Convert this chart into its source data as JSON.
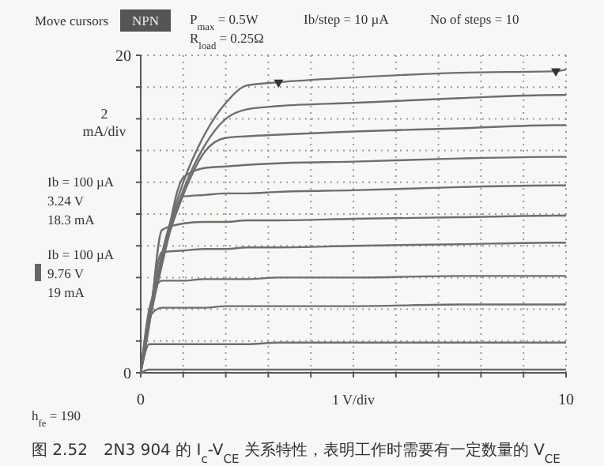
{
  "chart_data": {
    "type": "line",
    "ylabel": "2 mA/div",
    "xlabel": "1 V/div",
    "x": [
      0,
      0.2,
      0.5,
      1,
      1.5,
      2,
      2.5,
      3.24,
      5,
      7.5,
      9.76,
      10
    ],
    "xlim": [
      0,
      10
    ],
    "ylim": [
      0,
      20
    ],
    "xticks": [
      0,
      {
        "value": 1,
        "label": null
      },
      {
        "value": 2,
        "label": null
      },
      {
        "value": 3,
        "label": null
      },
      {
        "value": 4,
        "label": null
      },
      {
        "value": 5,
        "label": null
      },
      {
        "value": 6,
        "label": null
      },
      {
        "value": 7,
        "label": null
      },
      {
        "value": 8,
        "label": null
      },
      {
        "value": 9,
        "label": null
      },
      10
    ],
    "yticks": [
      0,
      {
        "value": 2,
        "label": null
      },
      {
        "value": 4,
        "label": null
      },
      {
        "value": 6,
        "label": null
      },
      {
        "value": 8,
        "label": null
      },
      {
        "value": 10,
        "label": null
      },
      {
        "value": 12,
        "label": null
      },
      {
        "value": 14,
        "label": null
      },
      {
        "value": 16,
        "label": null
      },
      {
        "value": 18,
        "label": null
      },
      20
    ],
    "grid": true,
    "marker": "none",
    "line_style": "solid",
    "series": [
      {
        "color": "#6e6e6e",
        "values": [
          0,
          3.5,
          7.5,
          12,
          15,
          17,
          18.1,
          18.3,
          18.6,
          18.9,
          19,
          19.1
        ]
      },
      {
        "color": "#6e6e6e",
        "values": [
          0,
          3.4,
          7.3,
          11.5,
          14.3,
          16,
          16.6,
          16.8,
          17,
          17.3,
          17.5,
          17.5
        ]
      },
      {
        "color": "#6e6e6e",
        "values": [
          0,
          3.3,
          7.1,
          11.2,
          13.9,
          14.8,
          14.9,
          15,
          15.2,
          15.4,
          15.6,
          15.6
        ]
      },
      {
        "color": "#6e6e6e",
        "values": [
          0,
          3.2,
          6.9,
          12.3,
          12.9,
          13,
          13.1,
          13.2,
          13.3,
          13.5,
          13.6,
          13.6
        ]
      },
      {
        "color": "#6e6e6e",
        "values": [
          0,
          3.1,
          6.8,
          11.1,
          11.2,
          11.3,
          11.3,
          11.4,
          11.5,
          11.7,
          11.8,
          11.8
        ]
      },
      {
        "color": "#6e6e6e",
        "values": [
          0,
          3,
          9,
          9.4,
          9.5,
          9.5,
          9.6,
          9.6,
          9.7,
          9.8,
          9.9,
          9.9
        ]
      },
      {
        "color": "#6e6e6e",
        "values": [
          0,
          3.5,
          7.6,
          7.7,
          7.8,
          7.8,
          7.9,
          7.9,
          8,
          8.1,
          8.2,
          8.2
        ]
      },
      {
        "color": "#6e6e6e",
        "values": [
          0,
          4,
          5.8,
          5.8,
          5.9,
          5.9,
          5.9,
          6,
          6,
          6.1,
          6.1,
          6.1
        ]
      },
      {
        "color": "#6e6e6e",
        "values": [
          0,
          3.5,
          4.1,
          4.1,
          4.1,
          4.2,
          4.2,
          4.2,
          4.2,
          4.3,
          4.3,
          4.3
        ]
      },
      {
        "color": "#6e6e6e",
        "values": [
          0,
          1.8,
          1.8,
          1.8,
          1.8,
          1.8,
          1.8,
          1.9,
          1.9,
          1.9,
          1.9,
          1.9
        ]
      },
      {
        "color": "#6e6e6e",
        "values": [
          0,
          0.2,
          0.2,
          0.2,
          0.2,
          0.2,
          0.2,
          0.2,
          0.2,
          0.2,
          0.2,
          0.2
        ]
      },
      {
        "type": "scatter",
        "color": "#333333",
        "marker": "triangle",
        "x": [
          3.24,
          9.76
        ],
        "values": [
          18.3,
          19
        ]
      }
    ],
    "annotations": [
      "Move cursors",
      "NPN",
      "P$_{max}$ = 0.5W",
      "R$_{load}$ = 0.25Ω",
      "Ib/step = 10 µA",
      "No of steps = 10",
      "Ib = 100 µA\n3.24 V\n18.3 mA",
      "Ib = 100 µA\n9.76 V\n19 mA",
      "h$_{fe}$ = 190",
      "图 2.52　2N3 904 的 I$_{c}$-V$_{CE}$ 关系特性，表明工作时需要有一定数量的 V$_{CE}$"
    ]
  }
}
